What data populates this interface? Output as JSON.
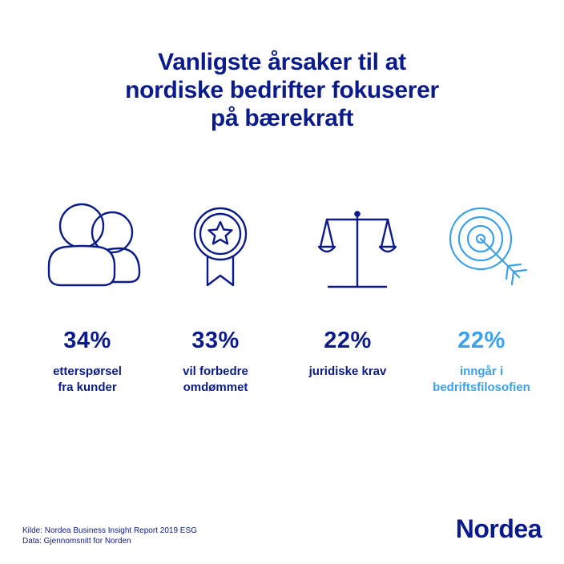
{
  "title": {
    "line1": "Vanligste årsaker til at",
    "line2": "nordiske bedrifter fokuserer",
    "line3": "på bærekraft"
  },
  "stats": [
    {
      "percent": "34%",
      "line1": "etterspørsel",
      "line2": "fra kunder",
      "icon": "people-icon",
      "color": "#0b1b8c"
    },
    {
      "percent": "33%",
      "line1": "vil forbedre",
      "line2": "omdømmet",
      "icon": "award-ribbon-icon",
      "color": "#0b1b8c"
    },
    {
      "percent": "22%",
      "line1": "juridiske krav",
      "line2": "",
      "icon": "scales-icon",
      "color": "#0b1b8c"
    },
    {
      "percent": "22%",
      "line1": "inngår i",
      "line2": "bedriftsfilosofien",
      "icon": "target-arrow-icon",
      "color": "#3aa1ec"
    }
  ],
  "source": {
    "line1": "Kilde: Nordea Business Insight Report 2019 ESG",
    "line2": "Data: Gjennomsnitt for Norden"
  },
  "logo": "Nordea"
}
